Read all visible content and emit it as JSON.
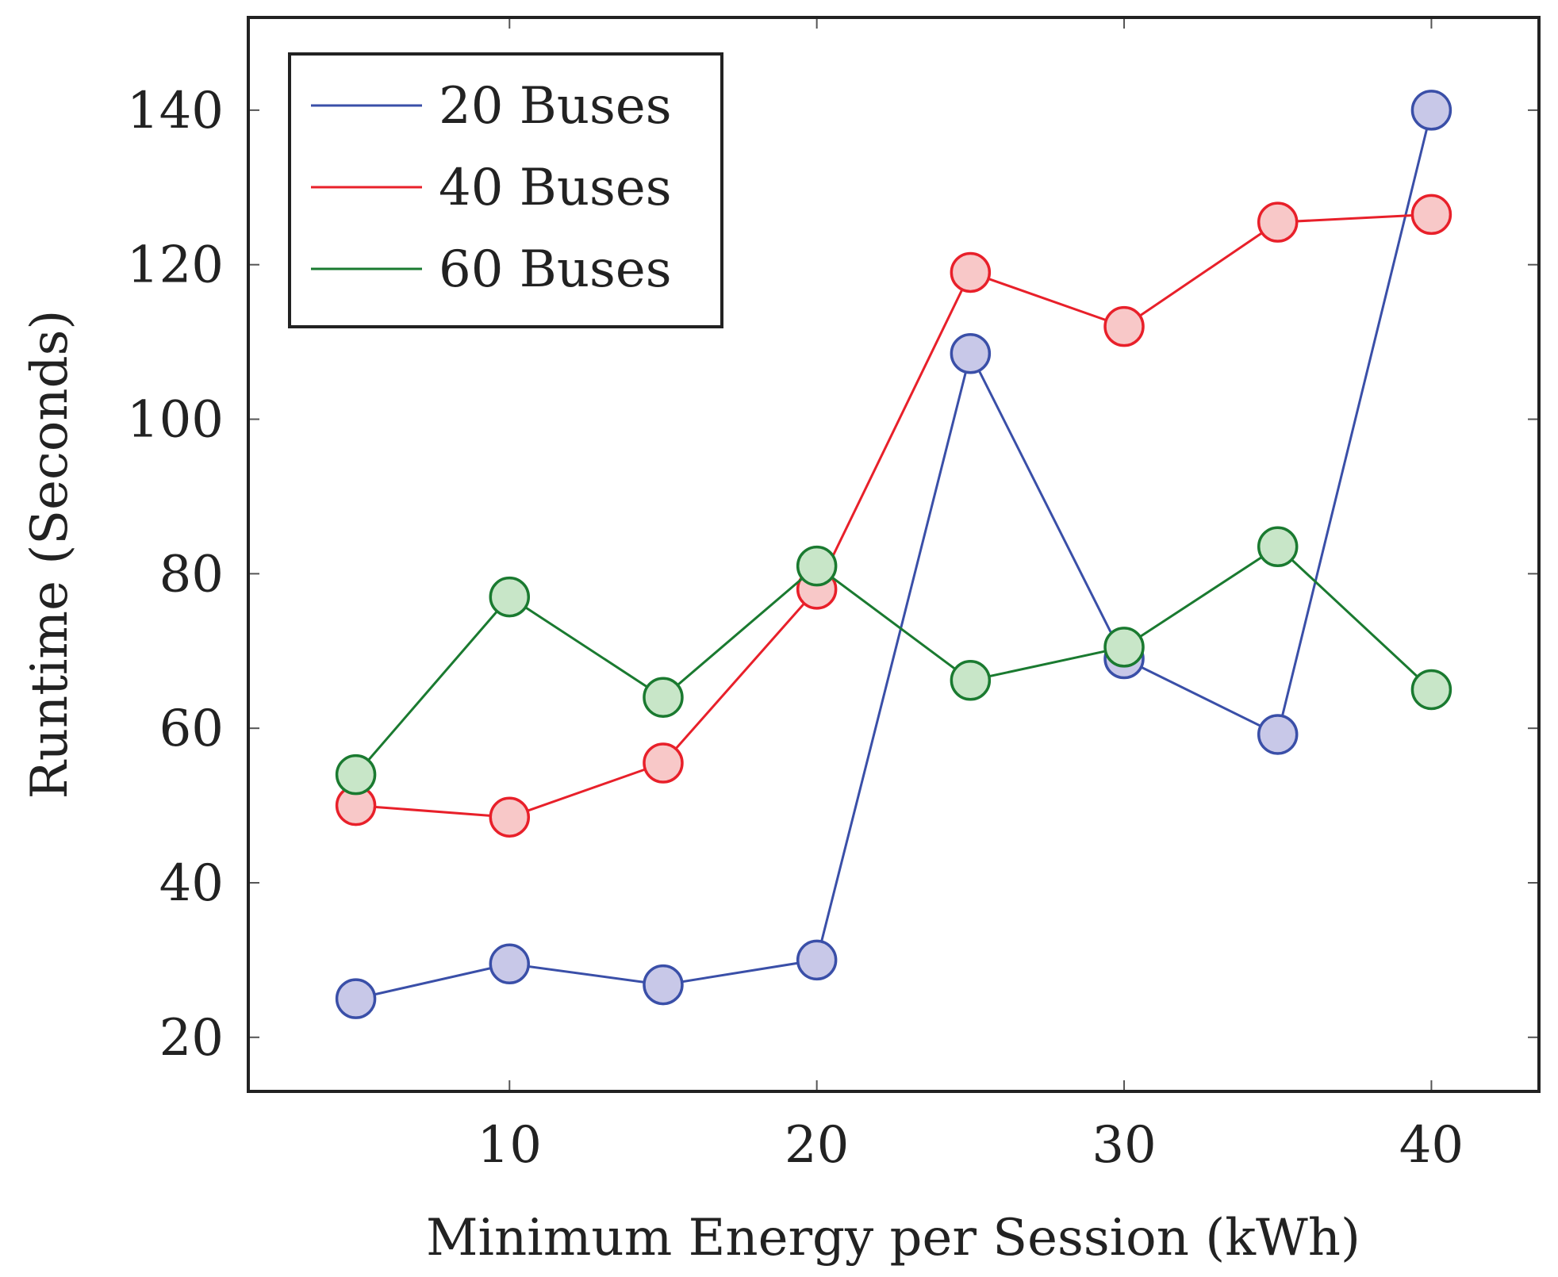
{
  "chart_data": {
    "type": "line",
    "title": "",
    "xlabel": "Minimum Energy per Session (kWh)",
    "ylabel": "Runtime (Seconds)",
    "xlim": [
      1.5,
      43.5
    ],
    "ylim": [
      13,
      152
    ],
    "x_ticks": [
      10,
      20,
      30,
      40
    ],
    "y_ticks": [
      20,
      40,
      60,
      80,
      100,
      120,
      140
    ],
    "grid": false,
    "legend_position": "top-left",
    "x": [
      5,
      10,
      15,
      20,
      25,
      30,
      35,
      40
    ],
    "series": [
      {
        "name": "20 Buses",
        "color": "#3a4fa8",
        "marker_fill": "#c8c8e8",
        "values": [
          25,
          29.5,
          26.8,
          30,
          108.5,
          69,
          59.2,
          140
        ]
      },
      {
        "name": "40 Buses",
        "color": "#e8202a",
        "marker_fill": "#f8c8c8",
        "values": [
          50,
          48.5,
          55.5,
          78,
          119,
          112,
          125.5,
          126.5
        ]
      },
      {
        "name": "60 Buses",
        "color": "#1a7a30",
        "marker_fill": "#c8e6c8",
        "values": [
          54,
          77,
          64,
          81,
          66.2,
          70.5,
          83.5,
          65
        ]
      }
    ]
  }
}
